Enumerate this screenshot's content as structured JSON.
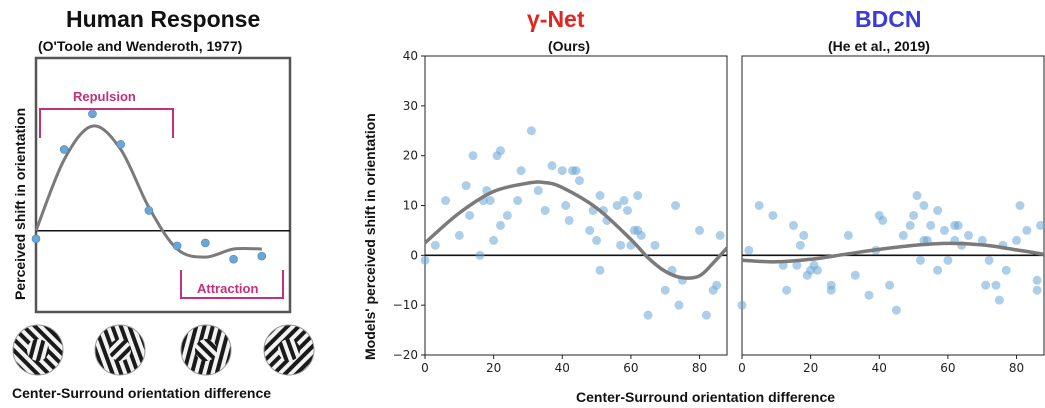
{
  "colors": {
    "gamma": "#e0261f",
    "bdcn": "#3b3bdc",
    "bracket": "#c2317a",
    "point": "#6aa6d6",
    "curve": "#7a7a7a"
  },
  "titles": {
    "human": "Human Response",
    "human_sub": "(O'Toole and Wenderoth, 1977)",
    "gamma": "γ-Net",
    "gamma_sub": "(Ours)",
    "bdcn": "BDCN",
    "bdcn_sub": "(He et al., 2019)"
  },
  "labels": {
    "human_y": "Perceived shift in orientation",
    "models_y": "Models' perceived shift in orientation",
    "x_left": "Center-Surround orientation difference",
    "x_right": "Center-Surround orientation difference",
    "repulsion": "Repulsion",
    "attraction": "Attraction"
  },
  "stimuli": [
    "stimulus-0",
    "stimulus-30",
    "stimulus-60",
    "stimulus-90"
  ],
  "chart_data": [
    {
      "type": "scatter",
      "title": "Human Response",
      "subtitle": "(O'Toole and Wenderoth, 1977)",
      "xlabel": "Center-Surround orientation difference",
      "ylabel": "Perceived shift in orientation",
      "annotations": [
        "Repulsion",
        "Attraction"
      ],
      "x": [
        0,
        10,
        20,
        30,
        40,
        50,
        60,
        70,
        80
      ],
      "values": [
        -0.8,
        8.0,
        11.5,
        8.5,
        2.0,
        -1.5,
        -1.2,
        -2.8,
        -2.5
      ],
      "curve_y": [
        0.0,
        7.0,
        10.3,
        8.0,
        2.3,
        -1.8,
        -2.6,
        -1.8,
        -1.8
      ],
      "ylim": [
        -8,
        17
      ],
      "xlim": [
        0,
        90
      ],
      "axes_ticks": false
    },
    {
      "type": "scatter",
      "title": "γ-Net",
      "subtitle": "(Ours)",
      "xlabel": "Center-Surround orientation difference",
      "ylabel": "Models' perceived shift in orientation",
      "xlim": [
        0,
        88
      ],
      "ylim": [
        -20,
        40
      ],
      "xticks": [
        0,
        20,
        40,
        60,
        80
      ],
      "yticks": [
        -20,
        -10,
        0,
        10,
        20,
        30,
        40
      ],
      "points": [
        [
          0,
          -1
        ],
        [
          3,
          2
        ],
        [
          6,
          11
        ],
        [
          10,
          4
        ],
        [
          12,
          14
        ],
        [
          13,
          8
        ],
        [
          14,
          20
        ],
        [
          16,
          0
        ],
        [
          17,
          11
        ],
        [
          18,
          13
        ],
        [
          19,
          11
        ],
        [
          20,
          3
        ],
        [
          21,
          20
        ],
        [
          22,
          6
        ],
        [
          22,
          21
        ],
        [
          24,
          8
        ],
        [
          27,
          11
        ],
        [
          28,
          17
        ],
        [
          31,
          25
        ],
        [
          33,
          13
        ],
        [
          35,
          9
        ],
        [
          37,
          18
        ],
        [
          40,
          17
        ],
        [
          41,
          10
        ],
        [
          42,
          7
        ],
        [
          43,
          17
        ],
        [
          44,
          17
        ],
        [
          45,
          15
        ],
        [
          48,
          5
        ],
        [
          49,
          9
        ],
        [
          50,
          3
        ],
        [
          51,
          -3
        ],
        [
          51,
          12
        ],
        [
          52,
          9
        ],
        [
          53,
          7
        ],
        [
          56,
          10
        ],
        [
          57,
          2
        ],
        [
          58,
          11
        ],
        [
          59,
          9
        ],
        [
          60,
          2
        ],
        [
          61,
          5
        ],
        [
          62,
          5
        ],
        [
          62,
          12
        ],
        [
          63,
          4
        ],
        [
          65,
          -12
        ],
        [
          67,
          2
        ],
        [
          70,
          -7
        ],
        [
          72,
          -3
        ],
        [
          73,
          10
        ],
        [
          74,
          -10
        ],
        [
          75,
          -5
        ],
        [
          80,
          5
        ],
        [
          82,
          -12
        ],
        [
          84,
          -7
        ],
        [
          85,
          -6
        ],
        [
          86,
          4
        ]
      ],
      "curve_x": [
        0,
        10,
        20,
        30,
        35,
        40,
        50,
        60,
        65,
        70,
        75,
        80,
        84,
        88
      ],
      "curve_y": [
        2.5,
        8.5,
        12.8,
        14.5,
        14.6,
        13.6,
        9.5,
        3.2,
        -0.5,
        -3.2,
        -4.5,
        -4.1,
        -1.5,
        1.5
      ]
    },
    {
      "type": "scatter",
      "title": "BDCN",
      "subtitle": "(He et al., 2019)",
      "xlim": [
        0,
        88
      ],
      "ylim": [
        -20,
        40
      ],
      "xticks": [
        0,
        20,
        40,
        60,
        80
      ],
      "yticks": [
        -20,
        -10,
        0,
        10,
        20,
        30,
        40
      ],
      "points": [
        [
          0,
          -10
        ],
        [
          2,
          1
        ],
        [
          5,
          10
        ],
        [
          9,
          8
        ],
        [
          12,
          -2
        ],
        [
          13,
          -7
        ],
        [
          15,
          6
        ],
        [
          16,
          -2
        ],
        [
          17,
          2
        ],
        [
          18,
          4
        ],
        [
          19,
          -4
        ],
        [
          20,
          -3
        ],
        [
          21,
          -2
        ],
        [
          22,
          -3
        ],
        [
          26,
          -6
        ],
        [
          26,
          -7
        ],
        [
          31,
          4
        ],
        [
          33,
          -4
        ],
        [
          37,
          -8
        ],
        [
          39,
          1
        ],
        [
          40,
          8
        ],
        [
          41,
          7
        ],
        [
          43,
          -6
        ],
        [
          45,
          -11
        ],
        [
          47,
          4
        ],
        [
          49,
          6
        ],
        [
          50,
          8
        ],
        [
          51,
          12
        ],
        [
          52,
          -1
        ],
        [
          53,
          3
        ],
        [
          53,
          10
        ],
        [
          54,
          3
        ],
        [
          55,
          6
        ],
        [
          57,
          9
        ],
        [
          57,
          -3
        ],
        [
          59,
          5
        ],
        [
          60,
          -1
        ],
        [
          62,
          6
        ],
        [
          62,
          3
        ],
        [
          63,
          6
        ],
        [
          64,
          2
        ],
        [
          66,
          4
        ],
        [
          70,
          3
        ],
        [
          71,
          -6
        ],
        [
          72,
          -1
        ],
        [
          74,
          -6
        ],
        [
          75,
          -9
        ],
        [
          76,
          2
        ],
        [
          77,
          -3
        ],
        [
          80,
          3
        ],
        [
          81,
          10
        ],
        [
          83,
          5
        ],
        [
          86,
          -5
        ],
        [
          86,
          -7
        ],
        [
          87,
          6
        ]
      ],
      "curve_x": [
        0,
        10,
        20,
        30,
        40,
        50,
        60,
        70,
        80,
        88
      ],
      "curve_y": [
        -1.0,
        -1.3,
        -0.8,
        0.2,
        1.2,
        2.0,
        2.4,
        2.1,
        1.1,
        0.2
      ]
    }
  ]
}
